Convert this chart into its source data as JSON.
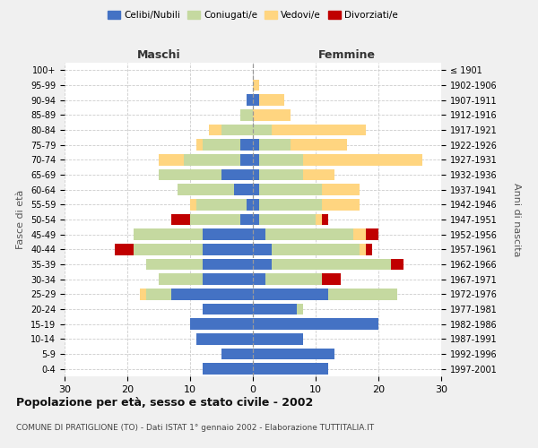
{
  "age_groups": [
    "0-4",
    "5-9",
    "10-14",
    "15-19",
    "20-24",
    "25-29",
    "30-34",
    "35-39",
    "40-44",
    "45-49",
    "50-54",
    "55-59",
    "60-64",
    "65-69",
    "70-74",
    "75-79",
    "80-84",
    "85-89",
    "90-94",
    "95-99",
    "100+"
  ],
  "birth_years": [
    "1997-2001",
    "1992-1996",
    "1987-1991",
    "1982-1986",
    "1977-1981",
    "1972-1976",
    "1967-1971",
    "1962-1966",
    "1957-1961",
    "1952-1956",
    "1947-1951",
    "1942-1946",
    "1937-1941",
    "1932-1936",
    "1927-1931",
    "1922-1926",
    "1917-1921",
    "1912-1916",
    "1907-1911",
    "1902-1906",
    "≤ 1901"
  ],
  "males": {
    "celibi": [
      8,
      5,
      9,
      10,
      8,
      13,
      8,
      8,
      8,
      8,
      2,
      1,
      3,
      5,
      2,
      2,
      0,
      0,
      1,
      0,
      0
    ],
    "coniugati": [
      0,
      0,
      0,
      0,
      0,
      4,
      7,
      9,
      11,
      11,
      8,
      8,
      9,
      10,
      9,
      6,
      5,
      2,
      0,
      0,
      0
    ],
    "vedovi": [
      0,
      0,
      0,
      0,
      0,
      1,
      0,
      0,
      0,
      0,
      0,
      1,
      0,
      0,
      4,
      1,
      2,
      0,
      0,
      0,
      0
    ],
    "divorziati": [
      0,
      0,
      0,
      0,
      0,
      0,
      0,
      0,
      3,
      0,
      3,
      0,
      0,
      0,
      0,
      0,
      0,
      0,
      0,
      0,
      0
    ]
  },
  "females": {
    "nubili": [
      12,
      13,
      8,
      20,
      7,
      12,
      2,
      3,
      3,
      2,
      1,
      1,
      1,
      1,
      1,
      1,
      0,
      0,
      1,
      0,
      0
    ],
    "coniugate": [
      0,
      0,
      0,
      0,
      1,
      11,
      9,
      19,
      14,
      14,
      9,
      10,
      10,
      7,
      7,
      5,
      3,
      0,
      0,
      0,
      0
    ],
    "vedove": [
      0,
      0,
      0,
      0,
      0,
      0,
      0,
      0,
      1,
      2,
      1,
      6,
      6,
      5,
      19,
      9,
      15,
      6,
      4,
      1,
      0
    ],
    "divorziate": [
      0,
      0,
      0,
      0,
      0,
      0,
      3,
      2,
      1,
      2,
      1,
      0,
      0,
      0,
      0,
      0,
      0,
      0,
      0,
      0,
      0
    ]
  },
  "colors": {
    "celibi": "#4472C4",
    "coniugati": "#c5d9a0",
    "vedovi": "#FFD580",
    "divorziati": "#C00000"
  },
  "title": "Popolazione per età, sesso e stato civile - 2002",
  "subtitle": "COMUNE DI PRATIGLIONE (TO) - Dati ISTAT 1° gennaio 2002 - Elaborazione TUTTITALIA.IT",
  "xlabel_left": "Maschi",
  "xlabel_right": "Femmine",
  "ylabel_left": "Fasce di età",
  "ylabel_right": "Anni di nascita",
  "xlim": 30,
  "bg_color": "#f0f0f0",
  "plot_bg": "#ffffff",
  "grid_color": "#cccccc"
}
